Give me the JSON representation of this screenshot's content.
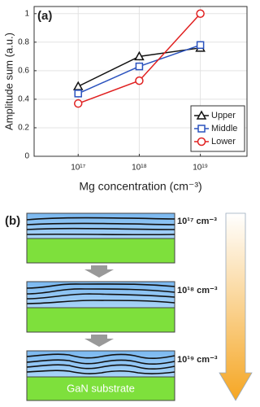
{
  "chart_data": {
    "type": "line",
    "panel_label": "(a)",
    "x_label": "Mg concentration (cm⁻³)",
    "y_label": "Amplitude sum (a.u.)",
    "x": [
      1e+17,
      1e+18,
      1e+19
    ],
    "x_log": true,
    "xlim": [
      1.9e+16,
      5.8e+19
    ],
    "xticks": [
      {
        "value": 1e+17,
        "label": "10¹⁷"
      },
      {
        "value": 1e+18,
        "label": "10¹⁸"
      },
      {
        "value": 1e+19,
        "label": "10¹⁹"
      }
    ],
    "ylim": [
      0,
      1.05
    ],
    "yticks": [
      0,
      0.2,
      0.4,
      0.6,
      0.8,
      1
    ],
    "grid": true,
    "legend": "lower-right",
    "series": [
      {
        "name": "Upper",
        "color": "#111111",
        "marker": "triangle",
        "values": [
          0.49,
          0.7,
          0.76
        ]
      },
      {
        "name": "Middle",
        "color": "#2a52be",
        "marker": "square",
        "values": [
          0.44,
          0.63,
          0.78
        ]
      },
      {
        "name": "Lower",
        "color": "#e02020",
        "marker": "circle",
        "values": [
          0.37,
          0.53,
          1.0
        ]
      }
    ]
  },
  "diagram": {
    "panel_label": "(b)",
    "layers": [
      "10¹⁷ cm⁻³",
      "10¹⁸ cm⁻³",
      "10¹⁹ cm⁻³"
    ],
    "substrate": "GaN substrate"
  }
}
